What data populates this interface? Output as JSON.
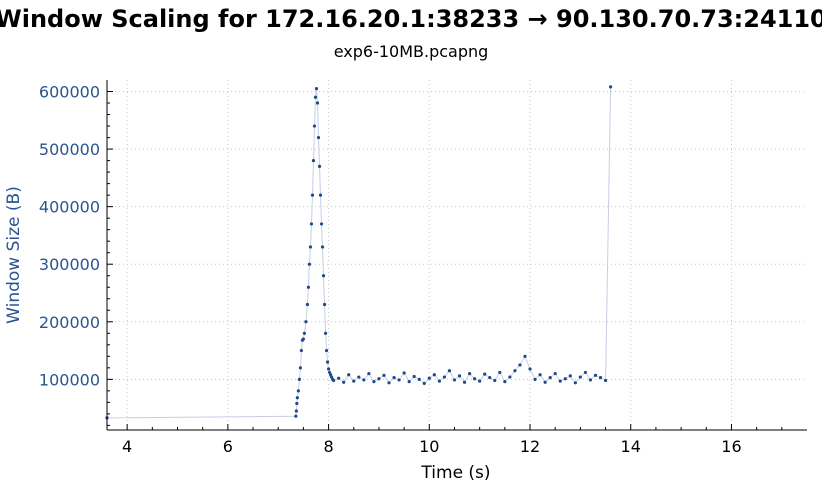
{
  "chart_data": {
    "type": "scatter",
    "title": "Window Scaling for 172.16.20.1:38233 → 90.130.70.73:24110",
    "subtitle": "exp6-10MB.pcapng",
    "xlabel": "Time (s)",
    "ylabel": "Window Size (B)",
    "xlim": [
      3.6,
      17.5
    ],
    "ylim": [
      12000,
      620000
    ],
    "xticks": [
      4,
      6,
      8,
      10,
      12,
      14,
      16
    ],
    "yticks": [
      100000,
      200000,
      300000,
      400000,
      500000,
      600000
    ],
    "xtick_labels": [
      "4",
      "6",
      "8",
      "10",
      "12",
      "14",
      "16"
    ],
    "ytick_labels": [
      "100000",
      "200000",
      "300000",
      "400000",
      "500000",
      "600000"
    ],
    "grid": true,
    "colors": {
      "points": "#1f4a8a",
      "line": "#c7cde6",
      "yaxis_text": "#2b5591"
    },
    "series": [
      {
        "x": [
          3.6,
          7.35,
          7.36,
          7.37,
          7.38,
          7.4,
          7.42,
          7.44,
          7.46,
          7.48,
          7.5,
          7.52,
          7.55,
          7.58,
          7.6,
          7.62,
          7.64,
          7.66,
          7.68,
          7.7,
          7.72,
          7.74,
          7.76,
          7.78,
          7.8,
          7.82,
          7.84,
          7.86,
          7.88,
          7.9,
          7.92,
          7.94,
          7.96,
          7.98,
          8.0,
          8.02,
          8.04,
          8.06,
          8.08,
          8.1,
          8.2,
          8.3,
          8.4,
          8.5,
          8.6,
          8.7,
          8.8,
          8.9,
          9.0,
          9.1,
          9.2,
          9.3,
          9.4,
          9.5,
          9.6,
          9.7,
          9.8,
          9.9,
          10.0,
          10.1,
          10.2,
          10.3,
          10.4,
          10.5,
          10.6,
          10.7,
          10.8,
          10.9,
          11.0,
          11.1,
          11.2,
          11.3,
          11.4,
          11.5,
          11.6,
          11.7,
          11.8,
          11.9,
          12.0,
          12.1,
          12.2,
          12.3,
          12.4,
          12.5,
          12.6,
          12.7,
          12.8,
          12.9,
          13.0,
          13.1,
          13.2,
          13.3,
          13.4,
          13.5,
          13.6
        ],
        "y": [
          33000,
          36000,
          45000,
          58000,
          68000,
          80000,
          100000,
          120000,
          150000,
          168000,
          170000,
          180000,
          200000,
          230000,
          260000,
          300000,
          330000,
          370000,
          420000,
          480000,
          540000,
          590000,
          605000,
          580000,
          520000,
          470000,
          420000,
          370000,
          330000,
          280000,
          230000,
          180000,
          150000,
          130000,
          118000,
          112000,
          108000,
          104000,
          100000,
          98000,
          102000,
          95000,
          108000,
          97000,
          104000,
          99000,
          110000,
          96000,
          101000,
          107000,
          94000,
          103000,
          99000,
          111000,
          96000,
          105000,
          100000,
          93000,
          102000,
          108000,
          97000,
          104000,
          115000,
          99000,
          106000,
          95000,
          110000,
          101000,
          97000,
          109000,
          103000,
          98000,
          112000,
          96000,
          104000,
          115000,
          125000,
          140000,
          118000,
          100000,
          108000,
          95000,
          103000,
          110000,
          97000,
          101000,
          106000,
          94000,
          104000,
          112000,
          99000,
          107000,
          103000,
          98000,
          608000
        ]
      }
    ]
  }
}
